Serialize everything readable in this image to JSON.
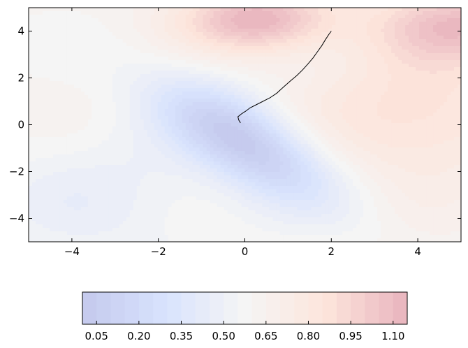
{
  "chart_data": {
    "type": "contour",
    "title": "",
    "xlabel": "",
    "ylabel": "",
    "xlim": [
      -5,
      5
    ],
    "ylim": [
      -5,
      5
    ],
    "x_ticks": [
      -4,
      -2,
      0,
      2,
      4
    ],
    "x_tick_labels": [
      "−4",
      "−2",
      "0",
      "2",
      "4"
    ],
    "y_ticks": [
      -4,
      -2,
      0,
      2,
      4
    ],
    "y_tick_labels": [
      "−4",
      "−2",
      "0",
      "2",
      "4"
    ],
    "colormap": "coolwarm",
    "alpha": 0.3,
    "grid": false,
    "contour_levels": [
      0.0,
      0.05,
      0.1,
      0.15,
      0.2,
      0.25,
      0.3,
      0.35,
      0.4,
      0.45,
      0.5,
      0.55,
      0.6,
      0.65,
      0.7,
      0.75,
      0.8,
      0.85,
      0.9,
      0.95,
      1.0,
      1.05,
      1.1,
      1.15
    ],
    "colorbar": {
      "orientation": "horizontal",
      "range": [
        0.0,
        1.15
      ],
      "ticks": [
        0.05,
        0.2,
        0.35,
        0.5,
        0.65,
        0.8,
        0.95,
        1.1
      ],
      "tick_labels": [
        "0.05",
        "0.20",
        "0.35",
        "0.50",
        "0.65",
        "0.80",
        "0.95",
        "1.10"
      ]
    },
    "surface_features": {
      "minimum": {
        "x": 0.0,
        "y": -0.7,
        "value": 0.03
      },
      "maxima": [
        {
          "x": 0.3,
          "y": 4.5,
          "value": 1.15
        },
        {
          "x": 5.0,
          "y": 4.3,
          "value": 1.05
        }
      ]
    },
    "trajectory": {
      "name": "",
      "color": "#000000",
      "points": [
        [
          2.0,
          4.0
        ],
        [
          1.94,
          3.85
        ],
        [
          1.86,
          3.62
        ],
        [
          1.78,
          3.38
        ],
        [
          1.68,
          3.12
        ],
        [
          1.58,
          2.86
        ],
        [
          1.46,
          2.6
        ],
        [
          1.34,
          2.35
        ],
        [
          1.2,
          2.1
        ],
        [
          1.06,
          1.88
        ],
        [
          0.9,
          1.62
        ],
        [
          0.74,
          1.35
        ],
        [
          0.58,
          1.15
        ],
        [
          0.42,
          1.0
        ],
        [
          0.26,
          0.85
        ],
        [
          0.12,
          0.72
        ],
        [
          0.02,
          0.58
        ],
        [
          -0.08,
          0.46
        ],
        [
          -0.16,
          0.34
        ],
        [
          -0.14,
          0.2
        ],
        [
          -0.1,
          0.08
        ]
      ]
    }
  }
}
